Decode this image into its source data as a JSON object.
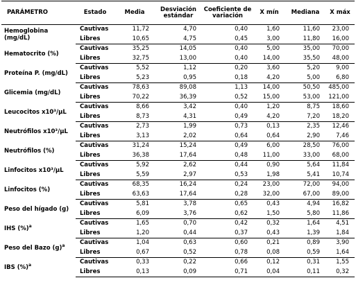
{
  "headers": [
    "PARÁMETRO",
    "Estado",
    "Media",
    "Desviación estándar",
    "Coeficiente de variación",
    "X mín",
    "Mediana",
    "X máx"
  ],
  "groups": [
    {
      "param": "Hemoglobina (mg/dL)",
      "sup": "",
      "rows": [
        {
          "estado": "Cautivas",
          "vals": [
            "11,72",
            "4,70",
            "0,40",
            "1,60",
            "11,60",
            "23,00"
          ]
        },
        {
          "estado": "Libres",
          "vals": [
            "10,65",
            "4,75",
            "0,45",
            "3,00",
            "11,80",
            "16,00"
          ]
        }
      ]
    },
    {
      "param": "Hematocrito (%)",
      "sup": "",
      "rows": [
        {
          "estado": "Cautivas",
          "vals": [
            "35,25",
            "14,05",
            "0,40",
            "5,00",
            "35,00",
            "70,00"
          ]
        },
        {
          "estado": "Libres",
          "vals": [
            "32,75",
            "13,00",
            "0,40",
            "14,00",
            "35,50",
            "48,00"
          ]
        }
      ]
    },
    {
      "param": "Proteína P. (mg/dL)",
      "sup": "",
      "rows": [
        {
          "estado": "Cautivas",
          "vals": [
            "5,52",
            "1,12",
            "0,20",
            "3,60",
            "5,20",
            "9,00"
          ]
        },
        {
          "estado": "Libres",
          "vals": [
            "5,23",
            "0,95",
            "0,18",
            "4,20",
            "5,00",
            "6,80"
          ]
        }
      ]
    },
    {
      "param": "Glicemia (mg/dL)",
      "sup": "",
      "rows": [
        {
          "estado": "Cautivas",
          "vals": [
            "78,63",
            "89,08",
            "1,13",
            "14,00",
            "50,50",
            "485,00"
          ]
        },
        {
          "estado": "Libres",
          "vals": [
            "70,22",
            "36,39",
            "0,52",
            "15,00",
            "53,00",
            "121,00"
          ]
        }
      ]
    },
    {
      "param": "Leucocitos x10³/µL",
      "sup": "",
      "rows": [
        {
          "estado": "Cautivas",
          "vals": [
            "8,66",
            "3,42",
            "0,40",
            "1,20",
            "8,75",
            "18,60"
          ]
        },
        {
          "estado": "Libres",
          "vals": [
            "8,73",
            "4,31",
            "0,49",
            "4,20",
            "7,20",
            "18,20"
          ]
        }
      ]
    },
    {
      "param": "Neutrófilos x10³/µL",
      "sup": "",
      "rows": [
        {
          "estado": "Cautivas",
          "vals": [
            "2,73",
            "1,99",
            "0,73",
            "0,13",
            "2,35",
            "12,46"
          ]
        },
        {
          "estado": "Libres",
          "vals": [
            "3,13",
            "2,02",
            "0,64",
            "0,64",
            "2,90",
            "7,46"
          ]
        }
      ]
    },
    {
      "param": "Neutrófilos (%)",
      "sup": "",
      "rows": [
        {
          "estado": "Cautivas",
          "vals": [
            "31,24",
            "15,24",
            "0,49",
            "6,00",
            "28,50",
            "76,00"
          ]
        },
        {
          "estado": "Libres",
          "vals": [
            "36,38",
            "17,64",
            "0,48",
            "11,00",
            "33,00",
            "68,00"
          ]
        }
      ]
    },
    {
      "param": "Linfocitos x10³/µL",
      "sup": "",
      "rows": [
        {
          "estado": "Cautivas",
          "vals": [
            "5,92",
            "2,62",
            "0,44",
            "0,90",
            "5,64",
            "11,84"
          ]
        },
        {
          "estado": "Libres",
          "vals": [
            "5,59",
            "2,97",
            "0,53",
            "1,98",
            "5,41",
            "10,74"
          ]
        }
      ]
    },
    {
      "param": "Linfocitos (%)",
      "sup": "",
      "rows": [
        {
          "estado": "Cautivas",
          "vals": [
            "68,35",
            "16,24",
            "0,24",
            "23,00",
            "72,00",
            "94,00"
          ]
        },
        {
          "estado": "Libres",
          "vals": [
            "63,63",
            "17,64",
            "0,28",
            "32,00",
            "67,00",
            "89,00"
          ]
        }
      ]
    },
    {
      "param": "Peso del hígado (g)",
      "sup": "",
      "rows": [
        {
          "estado": "Cautivas",
          "vals": [
            "5,81",
            "3,78",
            "0,65",
            "0,43",
            "4,94",
            "16,82"
          ]
        },
        {
          "estado": "Libres",
          "vals": [
            "6,09",
            "3,76",
            "0,62",
            "1,50",
            "5,80",
            "11,86"
          ]
        }
      ]
    },
    {
      "param": "IHS (%)",
      "sup": "a",
      "rows": [
        {
          "estado": "Cautivas",
          "vals": [
            "1,65",
            "0,70",
            "0,42",
            "0,32",
            "1,64",
            "4,51"
          ]
        },
        {
          "estado": "Libres",
          "vals": [
            "1,20",
            "0,44",
            "0,37",
            "0,43",
            "1,39",
            "1,84"
          ]
        }
      ]
    },
    {
      "param": "Peso del Bazo (g)",
      "sup": "a",
      "rows": [
        {
          "estado": "Cautivas",
          "vals": [
            "1,04",
            "0,63",
            "0,60",
            "0,21",
            "0,89",
            "3,90"
          ]
        },
        {
          "estado": "Libres",
          "vals": [
            "0,67",
            "0,52",
            "0,78",
            "0,08",
            "0,59",
            "1,64"
          ]
        }
      ]
    },
    {
      "param": "IBS (%)",
      "sup": "a",
      "rows": [
        {
          "estado": "Cautivas",
          "vals": [
            "0,33",
            "0,22",
            "0,66",
            "0,12",
            "0,31",
            "1,55"
          ]
        },
        {
          "estado": "Libres",
          "vals": [
            "0,13",
            "0,09",
            "0,71",
            "0,04",
            "0,11",
            "0,32"
          ]
        }
      ]
    }
  ]
}
